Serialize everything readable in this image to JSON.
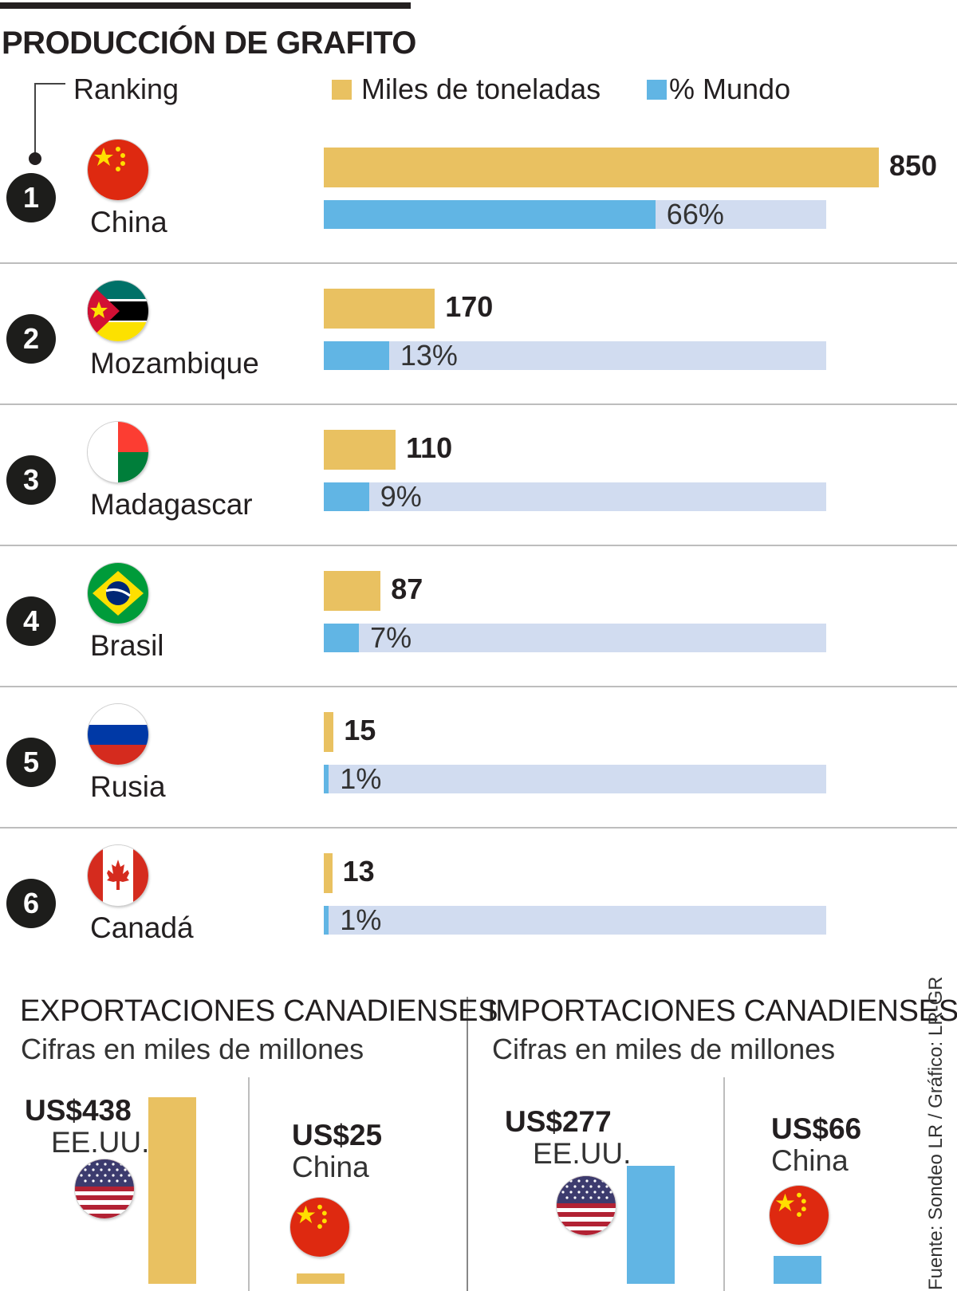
{
  "title": "PRODUCCIÓN DE GRAFITO",
  "legend": {
    "ranking": "Ranking",
    "tons": "Miles de toneladas",
    "pct": "% Mundo"
  },
  "colors": {
    "tons": "#e9c161",
    "pct": "#61b5e4",
    "track": "#d1dcf0",
    "exports_bar": "#e9c161",
    "imports_bar": "#61b5e4"
  },
  "chart_data": [
    {
      "type": "bar",
      "title": "PRODUCCIÓN DE GRAFITO",
      "orientation": "horizontal",
      "categories": [
        "China",
        "Mozambique",
        "Madagascar",
        "Brasil",
        "Rusia",
        "Canadá"
      ],
      "ranks": [
        "1",
        "2",
        "3",
        "4",
        "5",
        "6"
      ],
      "flags": [
        "flag-china",
        "flag-mozambique",
        "flag-madagascar",
        "flag-brazil",
        "flag-russia",
        "flag-canada"
      ],
      "series": [
        {
          "name": "Miles de toneladas",
          "values": [
            850,
            170,
            110,
            87,
            15,
            13
          ],
          "labels": [
            "850",
            "170",
            "110",
            "87",
            "15",
            "13"
          ]
        },
        {
          "name": "% Mundo",
          "values": [
            66,
            13,
            9,
            7,
            1,
            1
          ],
          "labels": [
            "66%",
            "13%",
            "9%",
            "7%",
            "1%",
            "1%"
          ]
        }
      ],
      "xlim_tons": [
        0,
        850
      ],
      "xlim_pct": [
        0,
        100
      ],
      "grid": false,
      "legend_placement": "top"
    },
    {
      "type": "bar",
      "title": "EXPORTACIONES CANADIENSES",
      "subtitle": "Cifras en miles de millones",
      "categories": [
        "EE.UU.",
        "China"
      ],
      "flags": [
        "flag-usa",
        "flag-china"
      ],
      "values": [
        438,
        25
      ],
      "labels": [
        "US$438",
        "US$25"
      ],
      "ylim": [
        0,
        438
      ]
    },
    {
      "type": "bar",
      "title": "IMPORTACIONES CANADIENSES",
      "subtitle": "Cifras en miles de millones",
      "categories": [
        "EE.UU.",
        "China"
      ],
      "flags": [
        "flag-usa",
        "flag-china"
      ],
      "values": [
        277,
        66
      ],
      "labels": [
        "US$277",
        "US$66"
      ],
      "ylim": [
        0,
        438
      ]
    }
  ],
  "source": "Fuente: Sondeo LR / Gráfico: LR-GR"
}
